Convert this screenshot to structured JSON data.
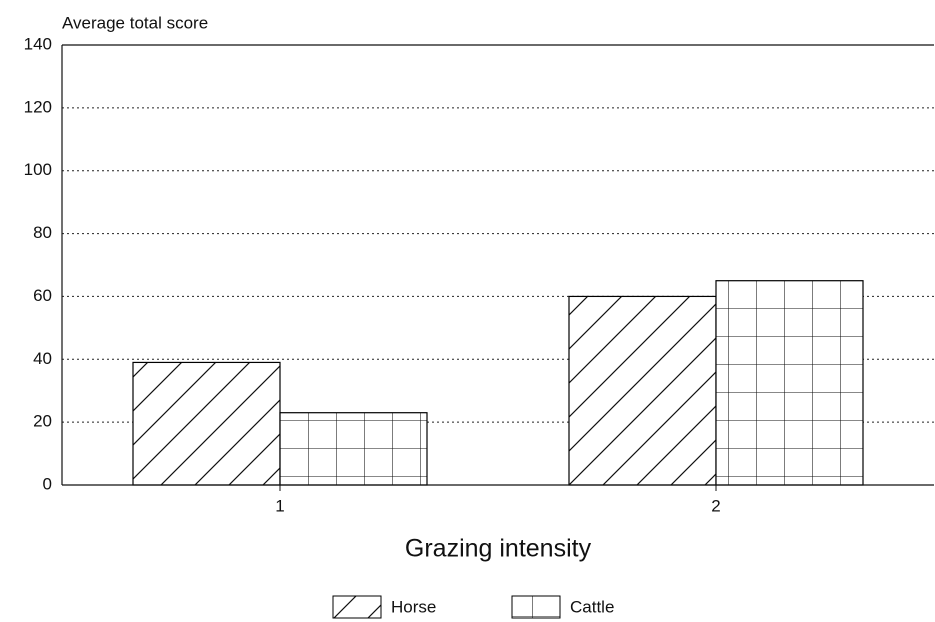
{
  "chart_data": {
    "type": "bar",
    "y_label": "Average total score",
    "x_label": "Grazing intensity",
    "categories": [
      "1",
      "2"
    ],
    "series": [
      {
        "name": "Horse",
        "color": "#000000",
        "pattern": "diagonal",
        "values": [
          39,
          60
        ]
      },
      {
        "name": "Cattle",
        "color": "#000000",
        "pattern": "grid",
        "values": [
          23,
          65
        ]
      }
    ],
    "ylim": [
      0,
      140
    ],
    "yticks": [
      0,
      20,
      40,
      60,
      80,
      100,
      120,
      140
    ],
    "grid": true
  }
}
